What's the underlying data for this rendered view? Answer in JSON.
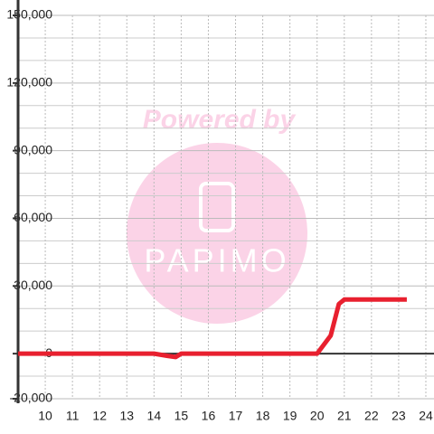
{
  "chart_data": {
    "type": "line",
    "watermark": [
      "Powered by",
      "PAPIMO"
    ],
    "xlim": [
      9,
      24.3
    ],
    "xticks": [
      10,
      11,
      12,
      13,
      14,
      15,
      16,
      17,
      18,
      19,
      20,
      21,
      22,
      23,
      24
    ],
    "ylim": [
      -20000,
      150000
    ],
    "yticks": [
      {
        "value": -20000,
        "label": "-20,000"
      },
      0,
      {
        "value": 30000,
        "label": "30,000"
      },
      {
        "value": 60000,
        "label": "60,000"
      },
      {
        "value": 90000,
        "label": "90,000"
      },
      {
        "value": 120000,
        "label": "120,000"
      },
      {
        "value": 150000,
        "label": "150,000"
      }
    ],
    "yminor": [
      -10000,
      10000,
      20000,
      40000,
      50000,
      70000,
      80000,
      100000,
      110000,
      130000,
      140000
    ],
    "grid": true,
    "series": [
      {
        "color": "#e8202f",
        "x": [
          9,
          14,
          14.5,
          14.8,
          15,
          20,
          20.5,
          20.8,
          21,
          23.3
        ],
        "values": [
          0,
          0,
          -1000,
          -1500,
          0,
          0,
          8000,
          22000,
          24000,
          24000
        ]
      }
    ]
  }
}
